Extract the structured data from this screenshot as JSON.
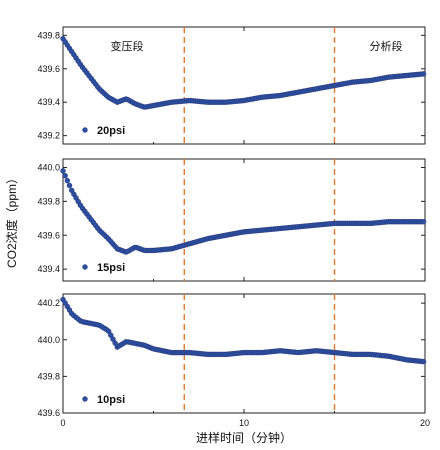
{
  "chart_data": {
    "type": "scatter",
    "xlabel": "进样时间（分钟）",
    "ylabel": "CO2浓度（ppm）",
    "xlim": [
      0,
      20
    ],
    "xticks": [
      0,
      10,
      20
    ],
    "vlines": [
      6.7,
      15.0
    ],
    "grid": false,
    "marker_color": "#2f4fa0",
    "marker_edge": "#1c2f6e",
    "vline_color": "#e07b2e",
    "annotations": [
      "变压段",
      "分析段"
    ],
    "panels": [
      {
        "legend": "20psi",
        "ylim": [
          439.15,
          439.85
        ],
        "yticks": [
          439.2,
          439.4,
          439.6,
          439.8
        ],
        "x": [
          0,
          0.5,
          1,
          1.5,
          2,
          2.5,
          3,
          3.5,
          4,
          4.5,
          5,
          6,
          7,
          8,
          9,
          10,
          11,
          12,
          13,
          14,
          15,
          16,
          17,
          18,
          19,
          20
        ],
        "y": [
          439.78,
          439.7,
          439.62,
          439.55,
          439.48,
          439.43,
          439.4,
          439.42,
          439.39,
          439.37,
          439.38,
          439.4,
          439.41,
          439.4,
          439.4,
          439.41,
          439.43,
          439.44,
          439.46,
          439.48,
          439.5,
          439.52,
          439.53,
          439.55,
          439.56,
          439.57
        ]
      },
      {
        "legend": "15psi",
        "ylim": [
          439.33,
          440.05
        ],
        "yticks": [
          439.4,
          439.6,
          439.8,
          440.0
        ],
        "x": [
          0,
          0.5,
          1,
          1.5,
          2,
          2.5,
          3,
          3.5,
          4,
          4.5,
          5,
          6,
          7,
          8,
          9,
          10,
          11,
          12,
          13,
          14,
          15,
          16,
          17,
          18,
          19,
          20
        ],
        "y": [
          439.98,
          439.86,
          439.77,
          439.7,
          439.63,
          439.58,
          439.52,
          439.5,
          439.53,
          439.51,
          439.51,
          439.52,
          439.55,
          439.58,
          439.6,
          439.62,
          439.63,
          439.64,
          439.65,
          439.66,
          439.67,
          439.67,
          439.67,
          439.68,
          439.68,
          439.68
        ]
      },
      {
        "legend": "10psi",
        "ylim": [
          439.6,
          440.25
        ],
        "yticks": [
          439.6,
          439.8,
          440.0,
          440.2
        ],
        "x": [
          0,
          0.5,
          1,
          1.5,
          2,
          2.5,
          3,
          3.5,
          4,
          4.5,
          5,
          6,
          7,
          8,
          9,
          10,
          11,
          12,
          13,
          14,
          15,
          16,
          17,
          18,
          19,
          20
        ],
        "y": [
          440.22,
          440.14,
          440.1,
          440.09,
          440.08,
          440.05,
          439.96,
          439.99,
          439.98,
          439.97,
          439.95,
          439.93,
          439.93,
          439.92,
          439.92,
          439.93,
          439.93,
          439.94,
          439.93,
          439.94,
          439.93,
          439.92,
          439.92,
          439.91,
          439.89,
          439.88
        ]
      }
    ]
  }
}
